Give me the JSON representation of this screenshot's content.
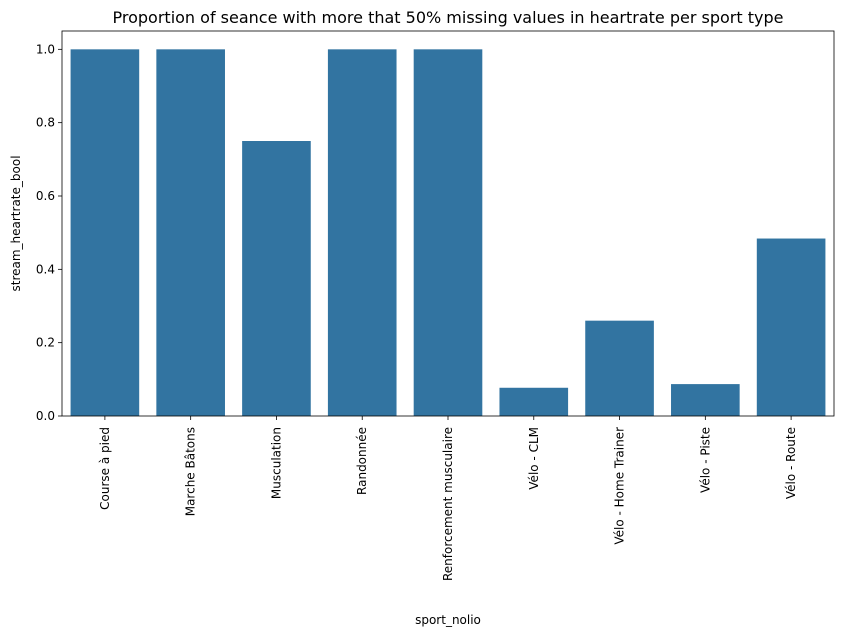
{
  "chart_data": {
    "type": "bar",
    "title": "Proportion of seance with more that 50% missing values in heartrate per sport type",
    "xlabel": "sport_nolio",
    "ylabel": "stream_heartrate_bool",
    "categories": [
      "Course à pied",
      "Marche Bâtons",
      "Musculation",
      "Randonnée",
      "Renforcement musculaire",
      "Vélo - CLM",
      "Vélo - Home Trainer",
      "Vélo - Piste",
      "Vélo - Route"
    ],
    "values": [
      1.0,
      1.0,
      0.75,
      1.0,
      1.0,
      0.077,
      0.26,
      0.087,
      0.484
    ],
    "ylim": [
      0,
      1.05
    ],
    "yticks": [
      "0.0",
      "0.2",
      "0.4",
      "0.6",
      "0.8",
      "1.0"
    ],
    "bar_color": "#3274a1",
    "grid": false
  }
}
